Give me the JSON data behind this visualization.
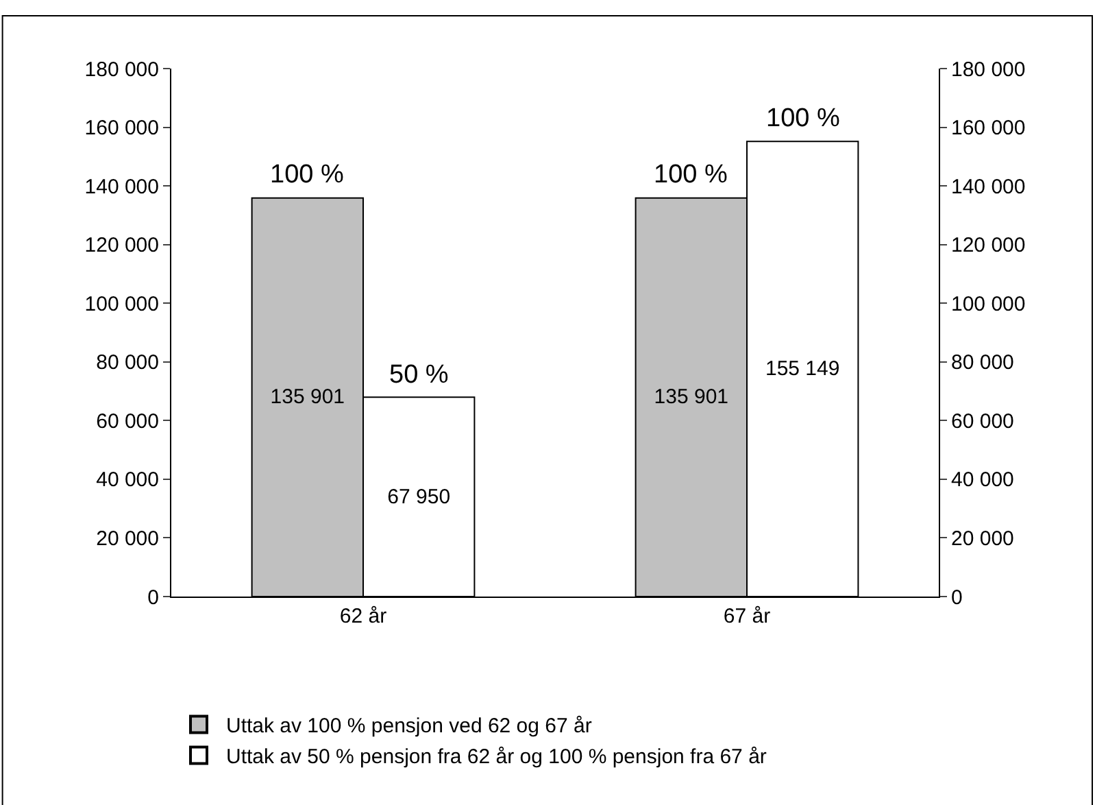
{
  "chart_data": {
    "type": "bar",
    "categories": [
      "62 år",
      "67 år"
    ],
    "series": [
      {
        "name": "Uttak av 100 % pensjon ved 62 og 67 år",
        "color": "#c0c0c0",
        "values": [
          135901,
          135901
        ],
        "value_labels": [
          "135 901",
          "135 901"
        ]
      },
      {
        "name": "Uttak av 50 % pensjon fra 62 år og 100 % pensjon fra 67 år",
        "color": "#ffffff",
        "values": [
          67950,
          155149
        ],
        "value_labels": [
          "67 950",
          "155 149"
        ]
      }
    ],
    "ylim": [
      0,
      180000
    ],
    "yticks": [
      {
        "value": 0,
        "label": "0"
      },
      {
        "value": 20000,
        "label": "20 000"
      },
      {
        "value": 40000,
        "label": "40 000"
      },
      {
        "value": 60000,
        "label": "60 000"
      },
      {
        "value": 80000,
        "label": "80 000"
      },
      {
        "value": 100000,
        "label": "100 000"
      },
      {
        "value": 120000,
        "label": "120 000"
      },
      {
        "value": 140000,
        "label": "140 000"
      },
      {
        "value": 160000,
        "label": "160 000"
      },
      {
        "value": 180000,
        "label": "180 000"
      }
    ],
    "y2lim": [
      0,
      180000
    ],
    "y2ticks": [
      {
        "value": 0,
        "label": "0"
      },
      {
        "value": 20000,
        "label": "20 000"
      },
      {
        "value": 40000,
        "label": "40 000"
      },
      {
        "value": 60000,
        "label": "60 000"
      },
      {
        "value": 80000,
        "label": "80 000"
      },
      {
        "value": 100000,
        "label": "100 000"
      },
      {
        "value": 120000,
        "label": "120 000"
      },
      {
        "value": 140000,
        "label": "140 000"
      },
      {
        "value": 160000,
        "label": "160 000"
      },
      {
        "value": 180000,
        "label": "180 000"
      }
    ],
    "annotations": [
      {
        "text": "100 %",
        "x": "62 år",
        "y": 135901
      },
      {
        "text": "50 %",
        "x": "62 år",
        "y": 67950
      },
      {
        "text": "100 %",
        "x": "67 år",
        "y": 135901
      },
      {
        "text": "100 %",
        "x": "67 år",
        "y": 155149
      }
    ],
    "legend": "bottom"
  }
}
